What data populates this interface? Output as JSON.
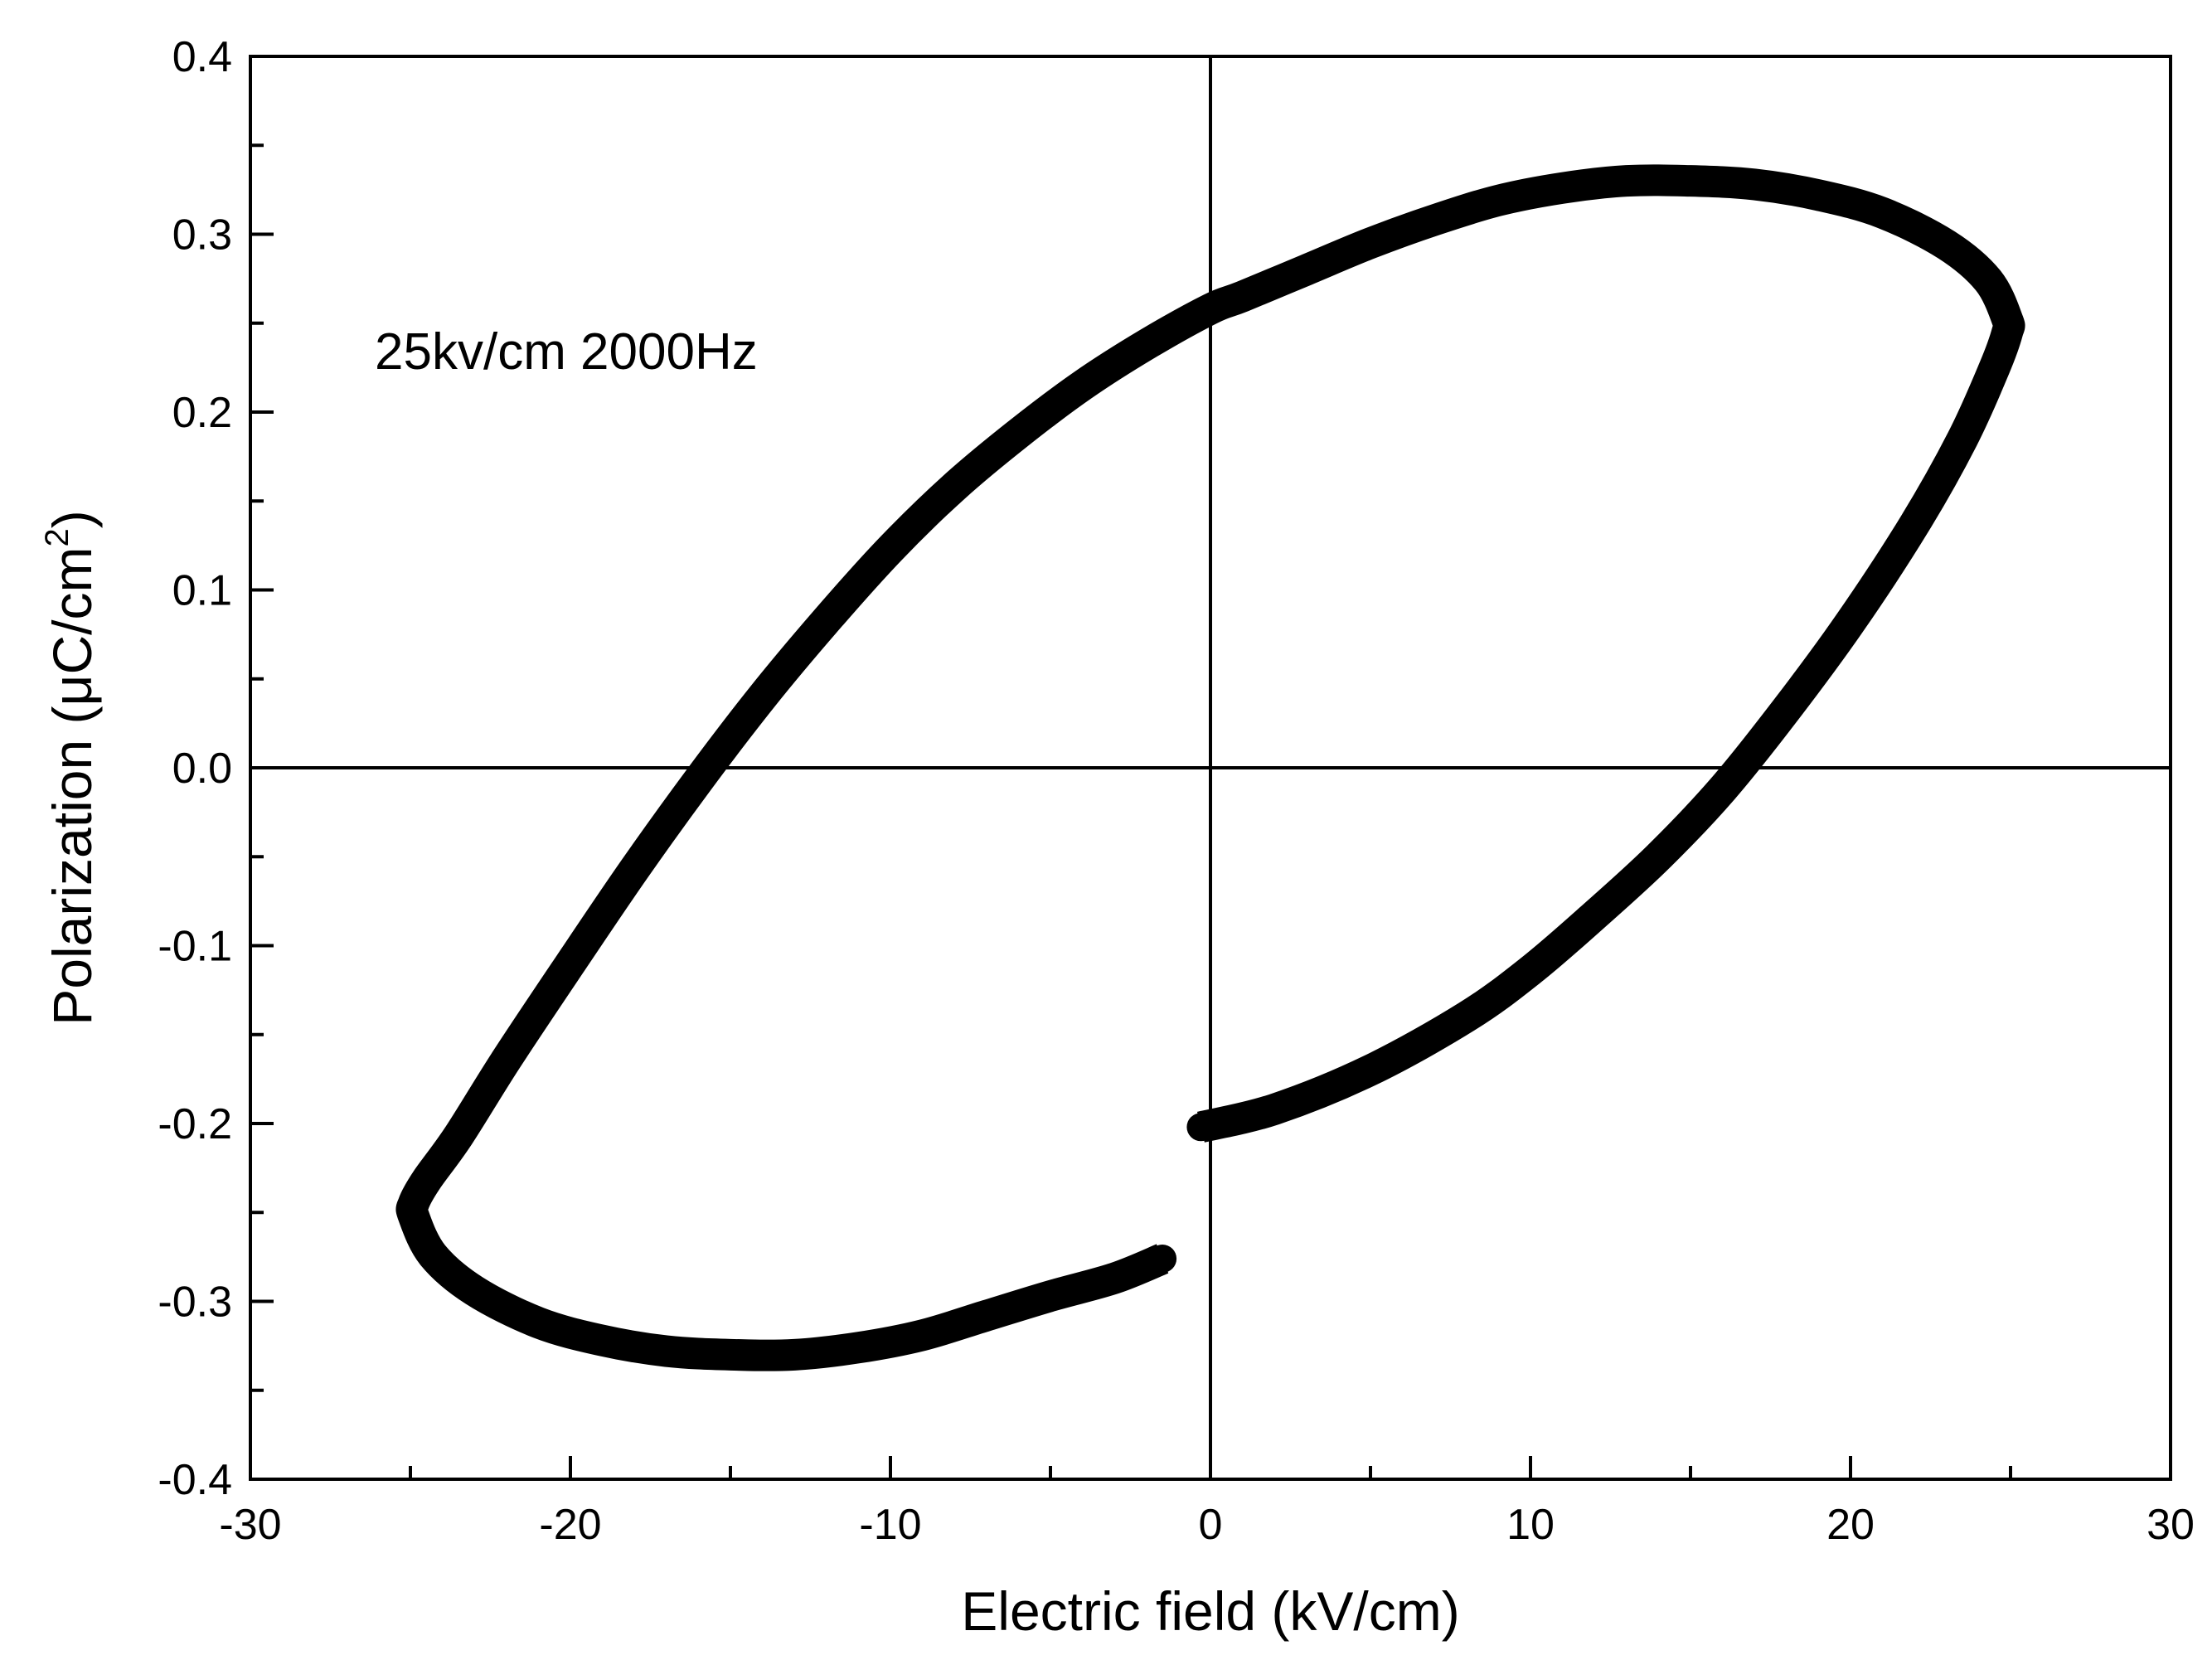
{
  "chart_data": {
    "type": "line",
    "title": "",
    "xlabel": "Electric field (kV/cm)",
    "ylabel_main": "Polarization (μC/cm",
    "ylabel_sup": "2",
    "ylabel_close": ")",
    "xlim": [
      -30,
      30
    ],
    "ylim": [
      -0.4,
      0.4
    ],
    "xticks": [
      "-30",
      "-20",
      "-10",
      "0",
      "10",
      "20",
      "30"
    ],
    "xtick_values": [
      -30,
      -20,
      -10,
      0,
      10,
      20,
      30
    ],
    "yticks": [
      "0.4",
      "0.3",
      "0.2",
      "0.1",
      "0.0",
      "-0.1",
      "-0.2",
      "-0.3",
      "-0.4"
    ],
    "ytick_values": [
      0.4,
      0.3,
      0.2,
      0.1,
      0.0,
      -0.1,
      -0.2,
      -0.3,
      -0.4
    ],
    "zero_lines": true,
    "grid": false,
    "annotation": "25kv/cm 2000Hz",
    "line_color": "#000000",
    "series": [
      {
        "x": [
          -0.3,
          2,
          5,
          8,
          10,
          12,
          14,
          16,
          18,
          20,
          22,
          23.5,
          24.5,
          24.9,
          24.9,
          24.3,
          23,
          21,
          19,
          17,
          15,
          13,
          11,
          9,
          7,
          5,
          3,
          1,
          0,
          -2,
          -4,
          -6,
          -8,
          -10,
          -12,
          -14,
          -16,
          -18,
          -20,
          -22,
          -23.5,
          -24.5,
          -24.9,
          -24.9,
          -24.3,
          -23,
          -21,
          -19,
          -17,
          -15,
          -13,
          -11,
          -9,
          -7,
          -5,
          -3,
          -1.5
        ],
        "y": [
          -0.202,
          -0.192,
          -0.17,
          -0.14,
          -0.114,
          -0.083,
          -0.05,
          -0.012,
          0.033,
          0.082,
          0.137,
          0.185,
          0.225,
          0.245,
          0.252,
          0.274,
          0.294,
          0.312,
          0.322,
          0.328,
          0.33,
          0.33,
          0.326,
          0.319,
          0.308,
          0.295,
          0.28,
          0.265,
          0.258,
          0.238,
          0.215,
          0.188,
          0.158,
          0.123,
          0.083,
          0.04,
          -0.007,
          -0.057,
          -0.11,
          -0.164,
          -0.207,
          -0.232,
          -0.245,
          -0.252,
          -0.274,
          -0.294,
          -0.312,
          -0.322,
          -0.328,
          -0.33,
          -0.33,
          -0.326,
          -0.319,
          -0.308,
          -0.297,
          -0.287,
          -0.276
        ]
      }
    ]
  }
}
